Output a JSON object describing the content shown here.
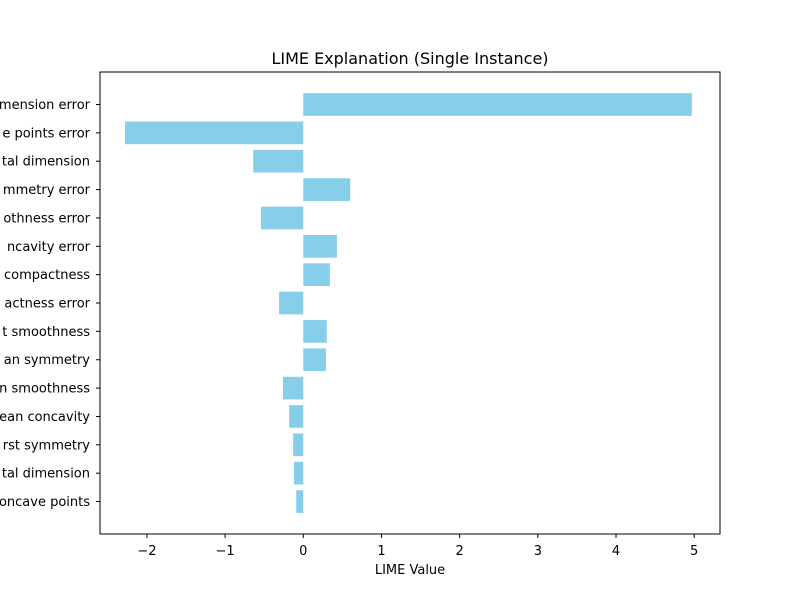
{
  "chart_data": {
    "type": "bar",
    "orientation": "horizontal",
    "title": "LIME Explanation (Single Instance)",
    "xlabel": "LIME Value",
    "ylabel": "",
    "xlim": [
      -2.6,
      5.33
    ],
    "xticks": [
      -2,
      -1,
      0,
      1,
      2,
      3,
      4,
      5
    ],
    "xtick_labels": [
      "−2",
      "−1",
      "0",
      "1",
      "2",
      "3",
      "4",
      "5"
    ],
    "bar_color": "#87ceeb",
    "grid": false,
    "categories": [
      "mension error",
      "e points error",
      "tal dimension",
      "mmetry error",
      "othness error",
      "ncavity error",
      "compactness",
      "actness error",
      "t smoothness",
      "an symmetry",
      "n smoothness",
      "ean concavity",
      "rst symmetry",
      "tal dimension",
      "oncave points"
    ],
    "values": [
      4.97,
      -2.28,
      -0.64,
      0.6,
      -0.54,
      0.43,
      0.34,
      -0.31,
      0.3,
      0.29,
      -0.26,
      -0.18,
      -0.13,
      -0.12,
      -0.09
    ]
  }
}
